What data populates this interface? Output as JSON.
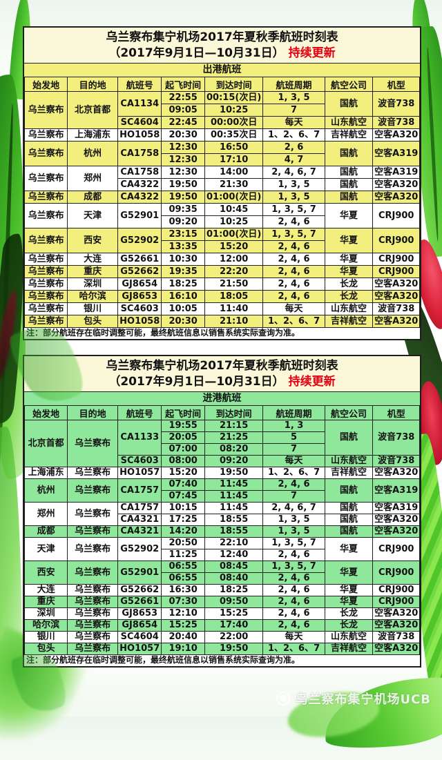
{
  "colors": {
    "row_yellow": "#f2ef7e",
    "row_green": "#8fe79b",
    "title_bg": "#faf8d8",
    "accent_red": "#e60012",
    "table_border": "#1e1e1e"
  },
  "watermark": {
    "text": "乌兰察布集宁机场UCB"
  },
  "tables": [
    {
      "name": "departures",
      "title_line1": "乌兰察布集宁机场2017年夏秋季航班时刻表",
      "title_line2": "（2017年9月1日—10月31日）",
      "title_badge": "持续更新",
      "section_label": "出港航班",
      "headers": [
        "始发地",
        "目的地",
        "航班号",
        "起飞时间",
        "到达时间",
        "航班周期",
        "航空公司",
        "机型"
      ],
      "note": "注：部分航班存在临时调整可能，最终航班信息以销售系统实际查询为准。",
      "rows": [
        {
          "bg": "yellow",
          "cells": [
            [
              "乌兰察布",
              3
            ],
            [
              "北京首都",
              3
            ],
            [
              "CA1134",
              2
            ],
            [
              "22:55"
            ],
            [
              "00:15(次日)"
            ],
            [
              "1, 3, 5"
            ],
            [
              "国航",
              2
            ],
            [
              "波音738",
              2
            ]
          ]
        },
        {
          "bg": "yellow",
          "cells": [
            [
              "09:05"
            ],
            [
              "10:25"
            ],
            [
              "7"
            ]
          ]
        },
        {
          "bg": "yellow",
          "cells": [
            [
              "SC4604"
            ],
            [
              "22:45"
            ],
            [
              "00:00次日"
            ],
            [
              "每天"
            ],
            [
              "山东航空"
            ],
            [
              "波音738"
            ]
          ]
        },
        {
          "bg": "white",
          "cells": [
            [
              "乌兰察布"
            ],
            [
              "上海浦东"
            ],
            [
              "HO1058"
            ],
            [
              "20:30"
            ],
            [
              "00:35次日"
            ],
            [
              "1、2、6、7"
            ],
            [
              "吉祥航空"
            ],
            [
              "空客A320"
            ]
          ]
        },
        {
          "bg": "yellow",
          "cells": [
            [
              "乌兰察布",
              2
            ],
            [
              "杭州",
              2
            ],
            [
              "CA1758",
              2
            ],
            [
              "12:30"
            ],
            [
              "16:50"
            ],
            [
              "2, 6"
            ],
            [
              "国航",
              2
            ],
            [
              "空客A319",
              2
            ]
          ]
        },
        {
          "bg": "yellow",
          "cells": [
            [
              "12:30"
            ],
            [
              "17:10"
            ],
            [
              "4, 7"
            ]
          ]
        },
        {
          "bg": "white",
          "cells": [
            [
              "乌兰察布",
              2
            ],
            [
              "郑州",
              2
            ],
            [
              "CA1758"
            ],
            [
              "12:30"
            ],
            [
              "14:00"
            ],
            [
              "2, 4, 6, 7"
            ],
            [
              "国航"
            ],
            [
              "空客A319"
            ]
          ]
        },
        {
          "bg": "white",
          "cells": [
            [
              "CA4322"
            ],
            [
              "19:50"
            ],
            [
              "21:30"
            ],
            [
              "1, 3, 5"
            ],
            [
              "国航"
            ],
            [
              "空客A320"
            ]
          ]
        },
        {
          "bg": "yellow",
          "cells": [
            [
              "乌兰察布"
            ],
            [
              "成都"
            ],
            [
              "CA4322"
            ],
            [
              "19:50"
            ],
            [
              "01:00(次日)"
            ],
            [
              "1, 3, 5"
            ],
            [
              "国航"
            ],
            [
              "空客A320"
            ]
          ]
        },
        {
          "bg": "white",
          "cells": [
            [
              "乌兰察布",
              2
            ],
            [
              "天津",
              2
            ],
            [
              "G52901",
              2
            ],
            [
              "09:35"
            ],
            [
              "10:45"
            ],
            [
              "1, 3, 5, 7"
            ],
            [
              "华夏",
              2
            ],
            [
              "CRJ900",
              2
            ]
          ]
        },
        {
          "bg": "white",
          "cells": [
            [
              "09:20"
            ],
            [
              "10:25"
            ],
            [
              "2, 4, 6"
            ]
          ]
        },
        {
          "bg": "yellow",
          "cells": [
            [
              "乌兰察布",
              2
            ],
            [
              "西安",
              2
            ],
            [
              "G52902",
              2
            ],
            [
              "23:15"
            ],
            [
              "01:00(次日)"
            ],
            [
              "1, 3, 5, 7"
            ],
            [
              "华夏",
              2
            ],
            [
              "CRJ900",
              2
            ]
          ]
        },
        {
          "bg": "yellow",
          "cells": [
            [
              "13:35"
            ],
            [
              "15:20"
            ],
            [
              "2, 4, 6"
            ]
          ]
        },
        {
          "bg": "white",
          "cells": [
            [
              "乌兰察布"
            ],
            [
              "大连"
            ],
            [
              "G52661"
            ],
            [
              "10:30"
            ],
            [
              "12:00"
            ],
            [
              "2, 4, 6"
            ],
            [
              "华夏"
            ],
            [
              "CRJ900"
            ]
          ]
        },
        {
          "bg": "yellow",
          "cells": [
            [
              "乌兰察布"
            ],
            [
              "重庆"
            ],
            [
              "G52662"
            ],
            [
              "19:35"
            ],
            [
              "22:20"
            ],
            [
              "2, 4, 6"
            ],
            [
              "华夏"
            ],
            [
              "CRJ900"
            ]
          ]
        },
        {
          "bg": "white",
          "cells": [
            [
              "乌兰察布"
            ],
            [
              "深圳"
            ],
            [
              "GJ8654"
            ],
            [
              "18:25"
            ],
            [
              "21:50"
            ],
            [
              "2, 4, 6"
            ],
            [
              "长龙"
            ],
            [
              "空客A320"
            ]
          ]
        },
        {
          "bg": "yellow",
          "cells": [
            [
              "乌兰察布"
            ],
            [
              "哈尔滨"
            ],
            [
              "GJ8653"
            ],
            [
              "16:10"
            ],
            [
              "18:05"
            ],
            [
              "2, 4, 6"
            ],
            [
              "长龙"
            ],
            [
              "空客A320"
            ]
          ]
        },
        {
          "bg": "white",
          "cells": [
            [
              "乌兰察布"
            ],
            [
              "银川"
            ],
            [
              "SC4603"
            ],
            [
              "10:05"
            ],
            [
              "11:40"
            ],
            [
              "每天"
            ],
            [
              "山东航空"
            ],
            [
              "波音738"
            ]
          ]
        },
        {
          "bg": "yellow",
          "cells": [
            [
              "乌兰察布"
            ],
            [
              "包头"
            ],
            [
              "HO1058"
            ],
            [
              "20:30"
            ],
            [
              "21:10"
            ],
            [
              "1、2、6、7"
            ],
            [
              "吉祥航空"
            ],
            [
              "空客A320"
            ]
          ]
        }
      ]
    },
    {
      "name": "arrivals",
      "title_line1": "乌兰察布集宁机场2017年夏秋季航班时刻表",
      "title_line2": "（2017年9月1日—10月31日）",
      "title_badge": "持续更新",
      "section_label": "进港航班",
      "headers": [
        "始发地",
        "目的地",
        "航班号",
        "起飞时间",
        "到达时间",
        "航班周期",
        "航空公司",
        "机型"
      ],
      "note": "注：部分航班存在临时调整可能，最终航班信息以销售系统实际查询为准。",
      "rows": [
        {
          "bg": "green",
          "cells": [
            [
              "北京首都",
              4
            ],
            [
              "乌兰察布",
              4
            ],
            [
              "CA1133",
              3
            ],
            [
              "19:55"
            ],
            [
              "21:15"
            ],
            [
              "1, 3"
            ],
            [
              "国航",
              3
            ],
            [
              "波音738",
              3
            ]
          ]
        },
        {
          "bg": "green",
          "cells": [
            [
              "20:05"
            ],
            [
              "21:25"
            ],
            [
              "5"
            ]
          ]
        },
        {
          "bg": "green",
          "cells": [
            [
              "07:00"
            ],
            [
              "08:20"
            ],
            [
              "7"
            ]
          ]
        },
        {
          "bg": "green",
          "cells": [
            [
              "SC4603"
            ],
            [
              "08:00"
            ],
            [
              "09:20"
            ],
            [
              "每天"
            ],
            [
              "山东航空"
            ],
            [
              "波音738"
            ]
          ]
        },
        {
          "bg": "white",
          "cells": [
            [
              "上海浦东"
            ],
            [
              "乌兰察布"
            ],
            [
              "HO1057"
            ],
            [
              "15:20"
            ],
            [
              "19:50"
            ],
            [
              "1、2、6、7"
            ],
            [
              "吉祥航空"
            ],
            [
              "空客A320"
            ]
          ]
        },
        {
          "bg": "green",
          "cells": [
            [
              "杭州",
              2
            ],
            [
              "乌兰察布",
              2
            ],
            [
              "CA1757",
              2
            ],
            [
              "07:40"
            ],
            [
              "11:45"
            ],
            [
              "2, 4, 6"
            ],
            [
              "国航",
              2
            ],
            [
              "空客A319",
              2
            ]
          ]
        },
        {
          "bg": "green",
          "cells": [
            [
              "07:45"
            ],
            [
              "11:45"
            ],
            [
              "7"
            ]
          ]
        },
        {
          "bg": "white",
          "cells": [
            [
              "郑州",
              2
            ],
            [
              "乌兰察布",
              2
            ],
            [
              "CA1757"
            ],
            [
              "10:15"
            ],
            [
              "11:45"
            ],
            [
              "2, 4, 6, 7"
            ],
            [
              "国航"
            ],
            [
              "空客A319"
            ]
          ]
        },
        {
          "bg": "white",
          "cells": [
            [
              "CA4321"
            ],
            [
              "17:25"
            ],
            [
              "18:55"
            ],
            [
              "1, 3, 5"
            ],
            [
              "国航"
            ],
            [
              "空客A320"
            ]
          ]
        },
        {
          "bg": "green",
          "cells": [
            [
              "成都"
            ],
            [
              "乌兰察布"
            ],
            [
              "CA4321"
            ],
            [
              "14:20"
            ],
            [
              "18:55"
            ],
            [
              "1, 3, 5"
            ],
            [
              "国航"
            ],
            [
              "空客A320"
            ]
          ]
        },
        {
          "bg": "white",
          "cells": [
            [
              "天津",
              2
            ],
            [
              "乌兰察布",
              2
            ],
            [
              "G52902",
              2
            ],
            [
              "20:50"
            ],
            [
              "22:10"
            ],
            [
              "1, 3, 5, 7"
            ],
            [
              "华夏",
              2
            ],
            [
              "CRJ900",
              2
            ]
          ]
        },
        {
          "bg": "white",
          "cells": [
            [
              "11:25"
            ],
            [
              "12:40"
            ],
            [
              "2, 4, 6"
            ]
          ]
        },
        {
          "bg": "green",
          "cells": [
            [
              "西安",
              2
            ],
            [
              "乌兰察布",
              2
            ],
            [
              "G52901",
              2
            ],
            [
              "06:55"
            ],
            [
              "08:45"
            ],
            [
              "1, 3, 5, 7"
            ],
            [
              "华夏",
              2
            ],
            [
              "CRJ900",
              2
            ]
          ]
        },
        {
          "bg": "green",
          "cells": [
            [
              "06:55"
            ],
            [
              "08:40"
            ],
            [
              "2, 4, 6"
            ]
          ]
        },
        {
          "bg": "white",
          "cells": [
            [
              "大连"
            ],
            [
              "乌兰察布"
            ],
            [
              "G52662"
            ],
            [
              "16:30"
            ],
            [
              "18:25"
            ],
            [
              "2, 4, 6"
            ],
            [
              "华夏"
            ],
            [
              "CRJ900"
            ]
          ]
        },
        {
          "bg": "green",
          "cells": [
            [
              "重庆"
            ],
            [
              "乌兰察布"
            ],
            [
              "G52661"
            ],
            [
              "07:30"
            ],
            [
              "09:50"
            ],
            [
              "2, 4, 6"
            ],
            [
              "华夏"
            ],
            [
              "CRJ900"
            ]
          ]
        },
        {
          "bg": "white",
          "cells": [
            [
              "深圳"
            ],
            [
              "乌兰察布"
            ],
            [
              "GJ8653"
            ],
            [
              "12:10"
            ],
            [
              "15:25"
            ],
            [
              "2, 4, 6"
            ],
            [
              "长龙"
            ],
            [
              "空客A320"
            ]
          ]
        },
        {
          "bg": "green",
          "cells": [
            [
              "哈尔滨"
            ],
            [
              "乌兰察布"
            ],
            [
              "GJ8654"
            ],
            [
              "15:25"
            ],
            [
              "17:40"
            ],
            [
              "2, 4, 6"
            ],
            [
              "长龙"
            ],
            [
              "空客A320"
            ]
          ]
        },
        {
          "bg": "white",
          "cells": [
            [
              "银川"
            ],
            [
              "乌兰察布"
            ],
            [
              "SC4604"
            ],
            [
              "20:40"
            ],
            [
              "22:00"
            ],
            [
              "每天"
            ],
            [
              "山东航空"
            ],
            [
              "波音738"
            ]
          ]
        },
        {
          "bg": "green",
          "cells": [
            [
              "包头"
            ],
            [
              "乌兰察布"
            ],
            [
              "HO1057"
            ],
            [
              "19:10"
            ],
            [
              "19:50"
            ],
            [
              "1、2、6、7"
            ],
            [
              "吉祥航空"
            ],
            [
              "空客A320"
            ]
          ]
        }
      ]
    }
  ]
}
